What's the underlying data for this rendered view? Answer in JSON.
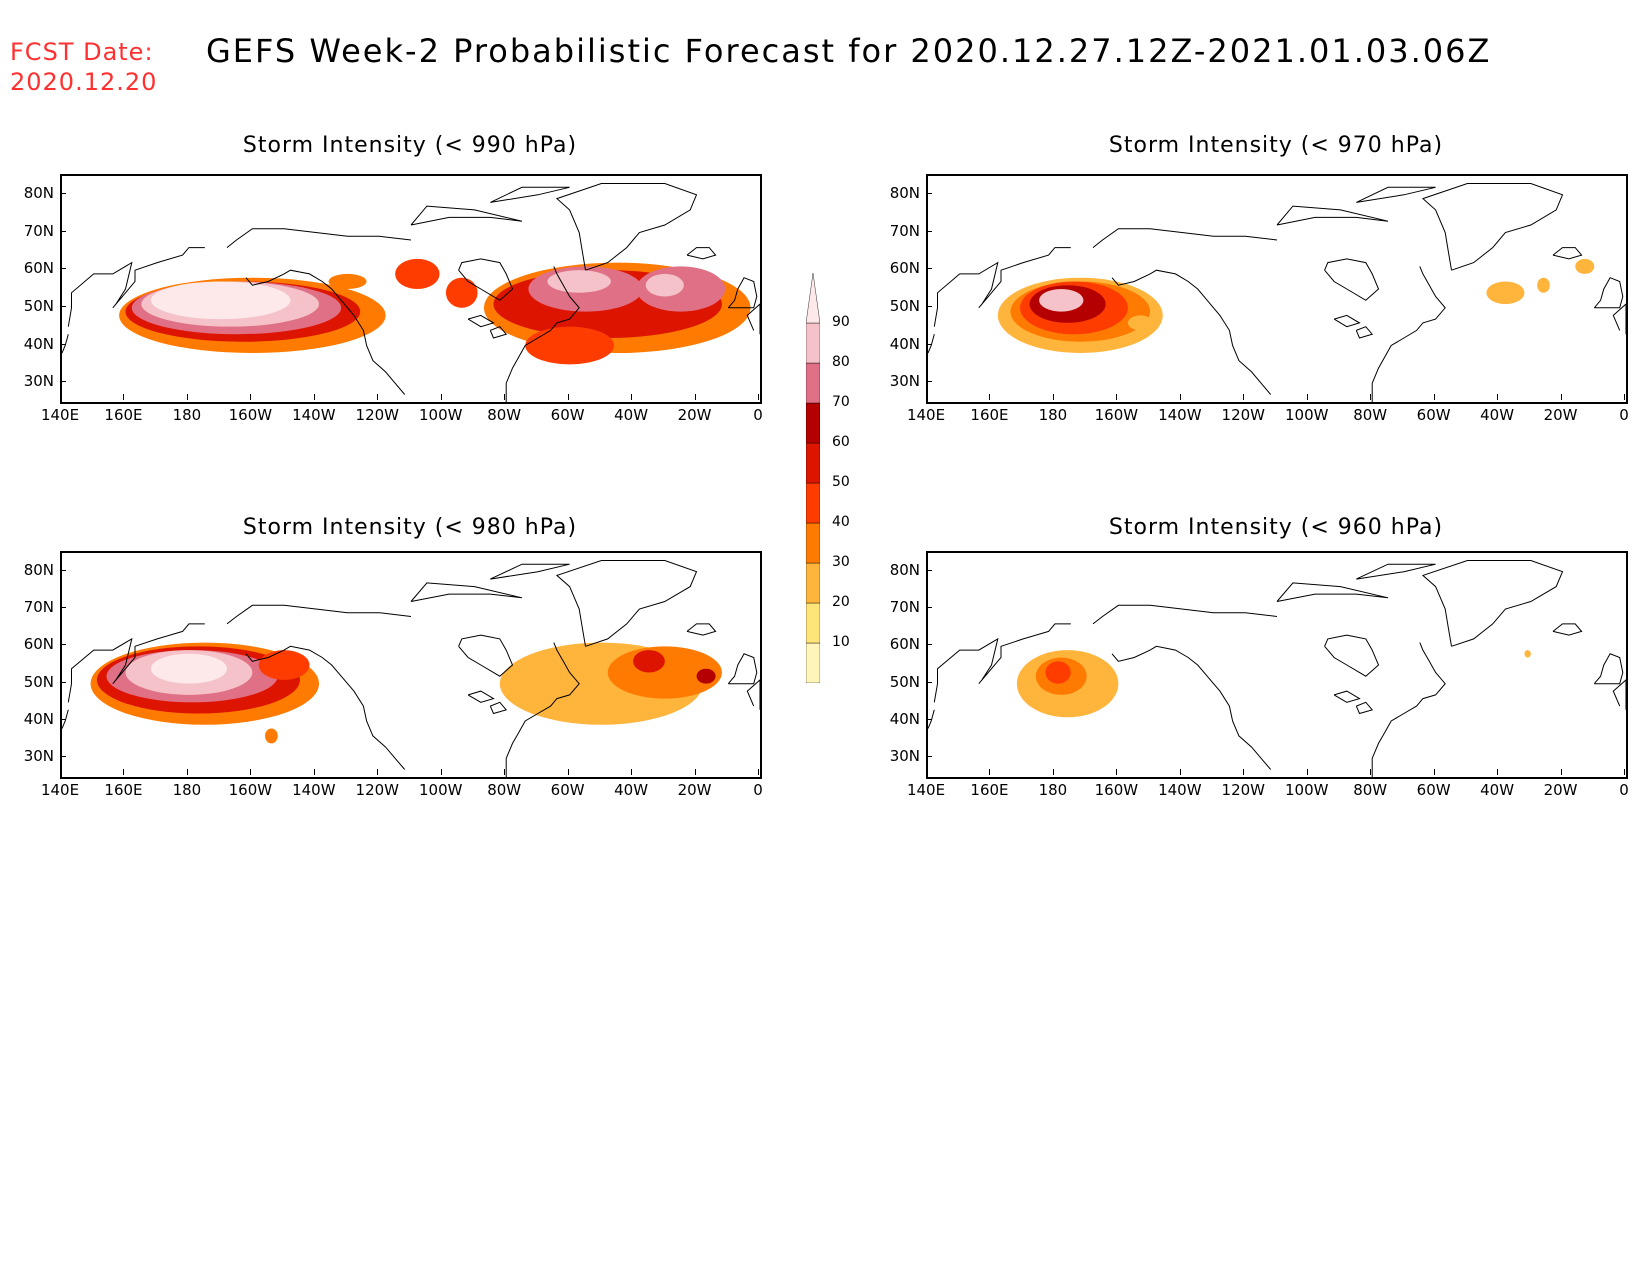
{
  "header": {
    "fcst_label": "FCST Date:",
    "fcst_date": "2020.12.20",
    "title": "GEFS Week-2 Probabilistic Forecast for 2020.12.27.12Z-2021.01.03.06Z"
  },
  "map": {
    "lon_range": [
      140,
      360
    ],
    "lat_range": [
      25,
      85
    ],
    "lat_labels": [
      "80N",
      "70N",
      "60N",
      "50N",
      "40N",
      "30N"
    ],
    "lat_values": [
      80,
      70,
      60,
      50,
      40,
      30
    ],
    "lon_labels": [
      "140E",
      "160E",
      "180",
      "160W",
      "140W",
      "120W",
      "100W",
      "80W",
      "60W",
      "40W",
      "20W",
      "0"
    ],
    "lon_values": [
      140,
      160,
      180,
      200,
      220,
      240,
      260,
      280,
      300,
      320,
      340,
      360
    ]
  },
  "panels": [
    {
      "id": "p990",
      "title": "Storm Intensity (< 990 hPa)",
      "blobs": [
        {
          "lon": 200,
          "lat": 48,
          "rlon": 42,
          "rlat": 10,
          "level": 30
        },
        {
          "lon": 197,
          "lat": 49,
          "rlon": 37,
          "rlat": 8,
          "level": 50
        },
        {
          "lon": 195,
          "lat": 50,
          "rlon": 33,
          "rlat": 7,
          "level": 70
        },
        {
          "lon": 193,
          "lat": 51,
          "rlon": 28,
          "rlat": 6,
          "level": 80
        },
        {
          "lon": 190,
          "lat": 52,
          "rlon": 22,
          "rlat": 5,
          "level": 90
        },
        {
          "lon": 230,
          "lat": 57,
          "rlon": 6,
          "rlat": 2,
          "level": 30
        },
        {
          "lon": 252,
          "lat": 59,
          "rlon": 7,
          "rlat": 4,
          "level": 40
        },
        {
          "lon": 266,
          "lat": 54,
          "rlon": 5,
          "rlat": 4,
          "level": 40
        },
        {
          "lon": 315,
          "lat": 50,
          "rlon": 42,
          "rlat": 12,
          "level": 30
        },
        {
          "lon": 312,
          "lat": 51,
          "rlon": 36,
          "rlat": 9,
          "level": 50
        },
        {
          "lon": 305,
          "lat": 55,
          "rlon": 18,
          "rlat": 6,
          "level": 70
        },
        {
          "lon": 303,
          "lat": 57,
          "rlon": 10,
          "rlat": 3,
          "level": 80
        },
        {
          "lon": 335,
          "lat": 55,
          "rlon": 14,
          "rlat": 6,
          "level": 70
        },
        {
          "lon": 330,
          "lat": 56,
          "rlon": 6,
          "rlat": 3,
          "level": 80
        },
        {
          "lon": 300,
          "lat": 40,
          "rlon": 14,
          "rlat": 5,
          "level": 40
        }
      ]
    },
    {
      "id": "p970",
      "title": "Storm Intensity (< 970 hPa)",
      "blobs": [
        {
          "lon": 188,
          "lat": 48,
          "rlon": 26,
          "rlat": 10,
          "level": 20
        },
        {
          "lon": 188,
          "lat": 49,
          "rlon": 22,
          "rlat": 8,
          "level": 30
        },
        {
          "lon": 186,
          "lat": 50,
          "rlon": 17,
          "rlat": 7,
          "level": 40
        },
        {
          "lon": 184,
          "lat": 51,
          "rlon": 12,
          "rlat": 5,
          "level": 60
        },
        {
          "lon": 182,
          "lat": 52,
          "rlon": 7,
          "rlat": 3,
          "level": 80
        },
        {
          "lon": 207,
          "lat": 46,
          "rlon": 4,
          "rlat": 2,
          "level": 20
        },
        {
          "lon": 322,
          "lat": 54,
          "rlon": 6,
          "rlat": 3,
          "level": 20
        },
        {
          "lon": 334,
          "lat": 56,
          "rlon": 2,
          "rlat": 2,
          "level": 20
        },
        {
          "lon": 347,
          "lat": 61,
          "rlon": 3,
          "rlat": 2,
          "level": 20
        }
      ]
    },
    {
      "id": "p980",
      "title": "Storm Intensity (< 980 hPa)",
      "blobs": [
        {
          "lon": 185,
          "lat": 50,
          "rlon": 36,
          "rlat": 11,
          "level": 30
        },
        {
          "lon": 183,
          "lat": 51,
          "rlon": 32,
          "rlat": 9,
          "level": 50
        },
        {
          "lon": 181,
          "lat": 52,
          "rlon": 27,
          "rlat": 7,
          "level": 70
        },
        {
          "lon": 180,
          "lat": 53,
          "rlon": 20,
          "rlat": 6,
          "level": 80
        },
        {
          "lon": 180,
          "lat": 54,
          "rlon": 12,
          "rlat": 4,
          "level": 90
        },
        {
          "lon": 210,
          "lat": 55,
          "rlon": 8,
          "rlat": 4,
          "level": 40
        },
        {
          "lon": 206,
          "lat": 36,
          "rlon": 2,
          "rlat": 2,
          "level": 30
        },
        {
          "lon": 310,
          "lat": 50,
          "rlon": 32,
          "rlat": 11,
          "level": 20
        },
        {
          "lon": 330,
          "lat": 53,
          "rlon": 18,
          "rlat": 7,
          "level": 30
        },
        {
          "lon": 325,
          "lat": 56,
          "rlon": 5,
          "rlat": 3,
          "level": 50
        },
        {
          "lon": 343,
          "lat": 52,
          "rlon": 3,
          "rlat": 2,
          "level": 60
        }
      ]
    },
    {
      "id": "p960",
      "title": "Storm Intensity (< 960 hPa)",
      "blobs": [
        {
          "lon": 184,
          "lat": 50,
          "rlon": 16,
          "rlat": 9,
          "level": 20
        },
        {
          "lon": 182,
          "lat": 52,
          "rlon": 8,
          "rlat": 5,
          "level": 30
        },
        {
          "lon": 181,
          "lat": 53,
          "rlon": 4,
          "rlat": 3,
          "level": 40
        },
        {
          "lon": 329,
          "lat": 58,
          "rlon": 1,
          "rlat": 1,
          "level": 20
        }
      ]
    }
  ],
  "colorbar": {
    "labels": [
      "90",
      "80",
      "70",
      "60",
      "50",
      "40",
      "30",
      "20",
      "10"
    ],
    "levels": [
      10,
      20,
      30,
      40,
      50,
      60,
      70,
      80,
      90
    ],
    "colors": [
      "#fff5b8",
      "#ffe47a",
      "#ffb43c",
      "#ff7a00",
      "#ff3c00",
      "#dd1400",
      "#b40000",
      "#e07085",
      "#f4c2c8",
      "#fde8ea"
    ]
  }
}
